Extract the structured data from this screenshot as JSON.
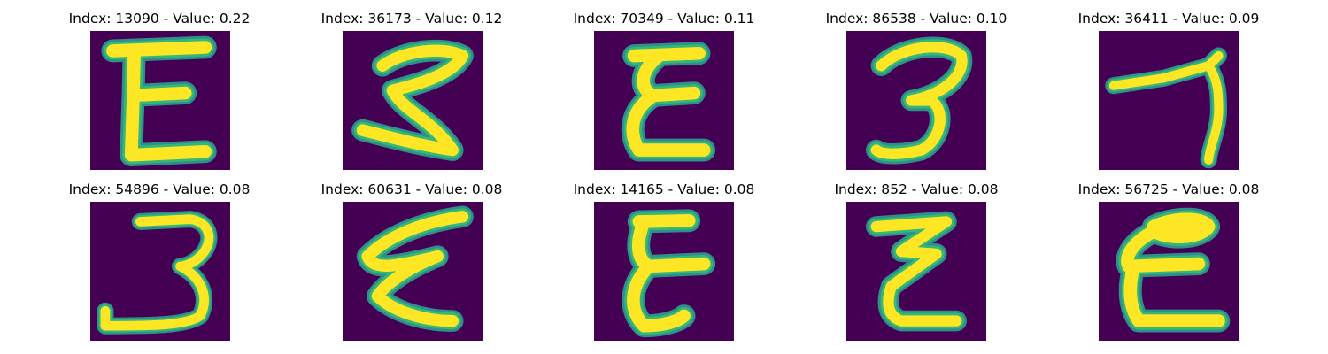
{
  "colors": {
    "background": "#440154",
    "stroke_edge": "#2f8f8a",
    "stroke_mid": "#35b779",
    "stroke_core": "#fde725"
  },
  "panels": [
    {
      "index": "13090",
      "value": "0.22",
      "title": "Index: 13090 - Value: 0.22",
      "glyph": "E-shape"
    },
    {
      "index": "36173",
      "value": "0.12",
      "title": "Index: 36173 - Value: 0.12",
      "glyph": "zigzag-3"
    },
    {
      "index": "70349",
      "value": "0.11",
      "title": "Index: 70349 - Value: 0.11",
      "glyph": "epsilon"
    },
    {
      "index": "86538",
      "value": "0.10",
      "title": "Index: 86538 - Value: 0.10",
      "glyph": "three"
    },
    {
      "index": "36411",
      "value": "0.09",
      "title": "Index: 36411 - Value: 0.09",
      "glyph": "seven-like"
    },
    {
      "index": "54896",
      "value": "0.08",
      "title": "Index: 54896 - Value: 0.08",
      "glyph": "three"
    },
    {
      "index": "60631",
      "value": "0.08",
      "title": "Index: 60631 - Value: 0.08",
      "glyph": "epsilon"
    },
    {
      "index": "14165",
      "value": "0.08",
      "title": "Index: 14165 - Value: 0.08",
      "glyph": "epsilon"
    },
    {
      "index": "852",
      "value": "0.08",
      "title": "Index: 852 - Value: 0.08",
      "glyph": "zigzag-z"
    },
    {
      "index": "56725",
      "value": "0.08",
      "title": "Index: 56725 - Value: 0.08",
      "glyph": "E-shape"
    }
  ]
}
